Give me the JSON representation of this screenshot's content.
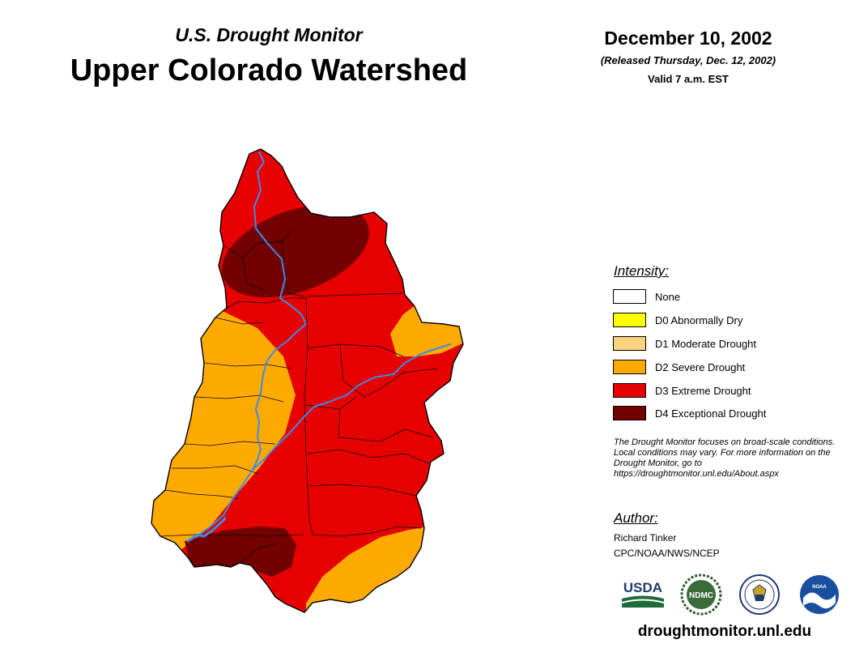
{
  "header": {
    "monitor_label": "U.S. Drought Monitor",
    "region_title": "Upper Colorado Watershed",
    "date": "December 10, 2002",
    "release_note": "(Released Thursday, Dec. 12, 2002)",
    "valid_time": "Valid 7 a.m. EST"
  },
  "legend": {
    "title": "Intensity:",
    "items": [
      {
        "label": "None",
        "color": "#FFFFFF"
      },
      {
        "label": "D0 Abnormally Dry",
        "color": "#FFFF00"
      },
      {
        "label": "D1 Moderate Drought",
        "color": "#FCD37F"
      },
      {
        "label": "D2 Severe Drought",
        "color": "#FFAA00"
      },
      {
        "label": "D3 Extreme Drought",
        "color": "#E60000"
      },
      {
        "label": "D4 Exceptional Drought",
        "color": "#730000"
      }
    ]
  },
  "disclaimer": "The Drought Monitor focuses on broad-scale conditions. Local conditions may vary. For more information on the Drought Monitor, go to https://droughtmonitor.unl.edu/About.aspx",
  "author": {
    "title": "Author:",
    "name": "Richard Tinker",
    "org": "CPC/NOAA/NWS/NCEP"
  },
  "logos": {
    "usda": "USDA",
    "ndmc": "NDMC",
    "noaa": "NOAA"
  },
  "site_url": "droughtmonitor.unl.edu",
  "colors": {
    "river": "#3C8CE6",
    "boundary": "#000000"
  }
}
